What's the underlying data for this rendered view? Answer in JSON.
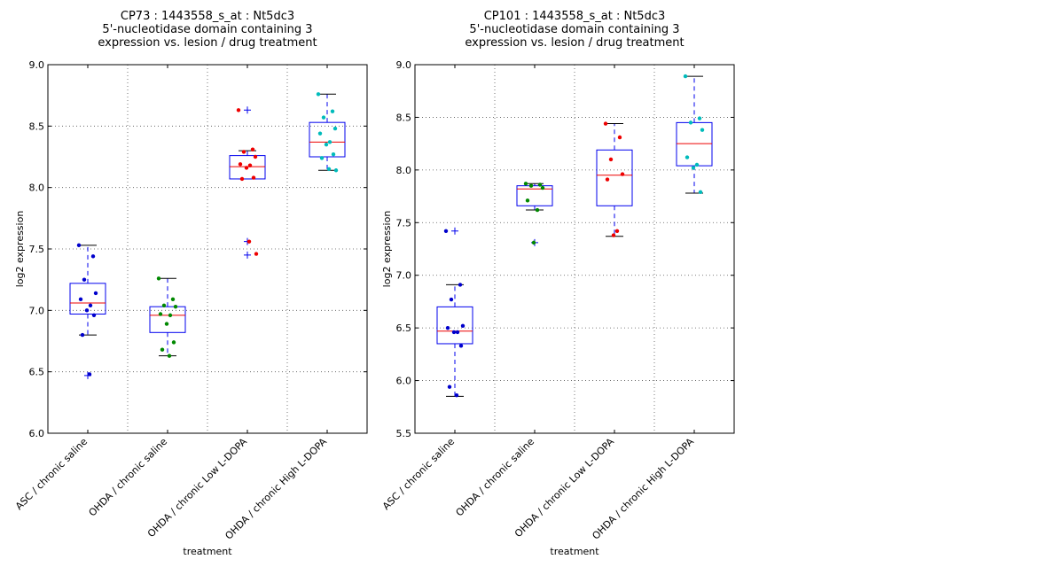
{
  "chart_data": [
    {
      "type": "box",
      "title_lines": [
        "CP73 : 1443558_s_at : Nt5dc3",
        "5'-nucleotidase domain containing 3",
        "expression vs. lesion / drug treatment"
      ],
      "xlabel": "treatment",
      "ylabel": "log2 expression",
      "ylim": [
        6.0,
        9.0
      ],
      "yticks": [
        "6.0",
        "6.5",
        "7.0",
        "7.5",
        "8.0",
        "8.5",
        "9.0"
      ],
      "grid": true,
      "categories": [
        "ASC / chronic saline",
        "OHDA / chronic saline",
        "OHDA / chronic Low L-DOPA",
        "OHDA / chronic High L-DOPA"
      ],
      "point_colors": [
        "#0000cc",
        "#008800",
        "#ee0000",
        "#00bbbb"
      ],
      "boxes": [
        {
          "q1": 6.97,
          "median": 7.06,
          "q3": 7.22,
          "whisker_low": 6.8,
          "whisker_high": 7.53,
          "outliers": [
            6.47
          ]
        },
        {
          "q1": 6.82,
          "median": 6.96,
          "q3": 7.03,
          "whisker_low": 6.63,
          "whisker_high": 7.26,
          "outliers": []
        },
        {
          "q1": 8.07,
          "median": 8.17,
          "q3": 8.26,
          "whisker_low": 8.07,
          "whisker_high": 8.3,
          "outliers": [
            8.63,
            7.56,
            7.45
          ]
        },
        {
          "q1": 8.25,
          "median": 8.37,
          "q3": 8.53,
          "whisker_low": 8.14,
          "whisker_high": 8.76,
          "outliers": []
        }
      ],
      "points": [
        [
          7.53,
          7.44,
          7.25,
          7.14,
          7.09,
          7.04,
          7.0,
          6.96,
          6.8,
          6.48
        ],
        [
          7.26,
          7.09,
          7.04,
          7.03,
          6.97,
          6.96,
          6.89,
          6.74,
          6.68,
          6.63
        ],
        [
          8.63,
          8.31,
          8.29,
          8.25,
          8.19,
          8.18,
          8.16,
          8.08,
          8.07,
          7.56,
          7.46
        ],
        [
          8.76,
          8.62,
          8.57,
          8.48,
          8.44,
          8.37,
          8.35,
          8.27,
          8.24,
          8.15,
          8.14
        ]
      ]
    },
    {
      "type": "box",
      "title_lines": [
        "CP101 : 1443558_s_at : Nt5dc3",
        "5'-nucleotidase domain containing 3",
        "expression vs. lesion / drug treatment"
      ],
      "xlabel": "treatment",
      "ylabel": "log2 expression",
      "ylim": [
        5.5,
        9.0
      ],
      "yticks": [
        "5.5",
        "6.0",
        "6.5",
        "7.0",
        "7.5",
        "8.0",
        "8.5",
        "9.0"
      ],
      "grid": true,
      "categories": [
        "ASC / chronic saline",
        "OHDA / chronic saline",
        "OHDA / chronic Low L-DOPA",
        "OHDA / chronic High L-DOPA"
      ],
      "point_colors": [
        "#0000cc",
        "#008800",
        "#ee0000",
        "#00bbbb"
      ],
      "boxes": [
        {
          "q1": 6.35,
          "median": 6.47,
          "q3": 6.7,
          "whisker_low": 5.85,
          "whisker_high": 6.91,
          "outliers": [
            7.42
          ]
        },
        {
          "q1": 7.66,
          "median": 7.82,
          "q3": 7.85,
          "whisker_low": 7.62,
          "whisker_high": 7.87,
          "outliers": [
            7.31
          ]
        },
        {
          "q1": 7.66,
          "median": 7.95,
          "q3": 8.19,
          "whisker_low": 7.37,
          "whisker_high": 8.44,
          "outliers": []
        },
        {
          "q1": 8.04,
          "median": 8.25,
          "q3": 8.45,
          "whisker_low": 7.78,
          "whisker_high": 8.89,
          "outliers": []
        }
      ],
      "points": [
        [
          7.42,
          6.91,
          6.77,
          6.52,
          6.5,
          6.46,
          6.46,
          6.33,
          5.94,
          5.86
        ],
        [
          7.87,
          7.86,
          7.85,
          7.83,
          7.71,
          7.62,
          7.31
        ],
        [
          8.44,
          8.31,
          8.1,
          7.96,
          7.91,
          7.42,
          7.38
        ],
        [
          8.89,
          8.49,
          8.45,
          8.38,
          8.12,
          8.05,
          8.02,
          7.79
        ]
      ]
    }
  ]
}
